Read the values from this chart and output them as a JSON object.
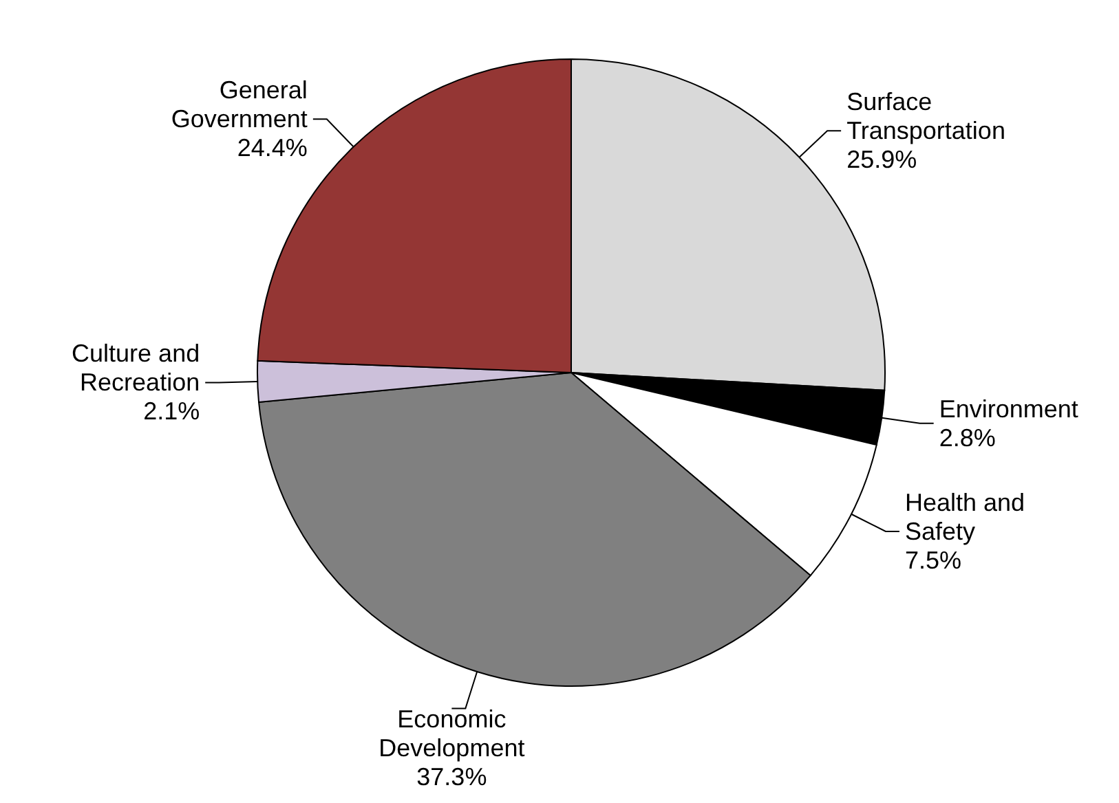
{
  "chart_data": {
    "type": "pie",
    "categories": [
      "Surface Transportation",
      "Environment",
      "Health and Safety",
      "Economic Development",
      "Culture and Recreation",
      "General Government"
    ],
    "values": [
      25.9,
      2.8,
      7.5,
      37.3,
      2.1,
      24.4
    ],
    "colors": [
      "#d9d9d9",
      "#000000",
      "#ffffff",
      "#808080",
      "#ccc0da",
      "#943634"
    ],
    "value_labels": [
      "25.9%",
      "2.8%",
      "7.5%",
      "37.3%",
      "2.1%",
      "24.4%"
    ]
  }
}
